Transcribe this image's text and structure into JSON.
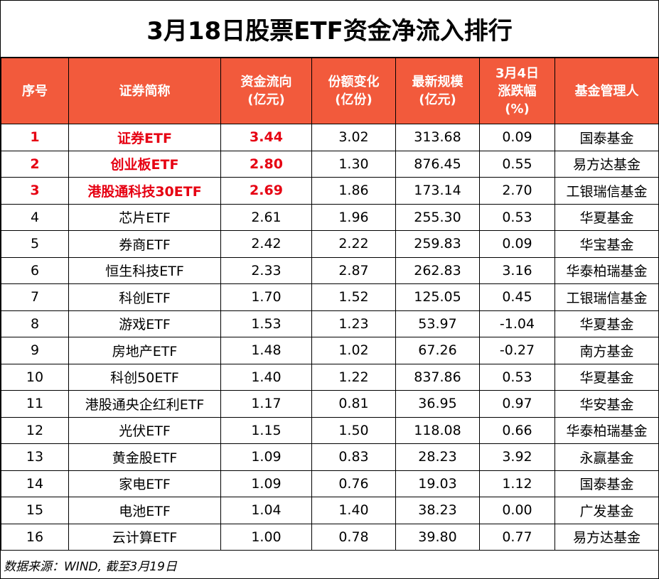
{
  "title": "3月18日股票ETF资金净流入排行",
  "headers": {
    "rank": "序号",
    "name": "证券简称",
    "flow": "资金流向\n(亿元)",
    "share": "份额变化\n(亿份)",
    "scale": "最新规模\n(亿元)",
    "change": "3月4日\n涨跌幅\n(%)",
    "manager": "基金管理人"
  },
  "rows": [
    {
      "rank": "1",
      "name": "证券ETF",
      "flow": "3.44",
      "share": "3.02",
      "scale": "313.68",
      "change": "0.09",
      "manager": "国泰基金",
      "highlight": true
    },
    {
      "rank": "2",
      "name": "创业板ETF",
      "flow": "2.80",
      "share": "1.30",
      "scale": "876.45",
      "change": "0.55",
      "manager": "易方达基金",
      "highlight": true
    },
    {
      "rank": "3",
      "name": "港股通科技30ETF",
      "flow": "2.69",
      "share": "1.86",
      "scale": "173.14",
      "change": "2.70",
      "manager": "工银瑞信基金",
      "highlight": true
    },
    {
      "rank": "4",
      "name": "芯片ETF",
      "flow": "2.61",
      "share": "1.96",
      "scale": "255.30",
      "change": "0.53",
      "manager": "华夏基金"
    },
    {
      "rank": "5",
      "name": "券商ETF",
      "flow": "2.42",
      "share": "2.22",
      "scale": "259.83",
      "change": "0.09",
      "manager": "华宝基金"
    },
    {
      "rank": "6",
      "name": "恒生科技ETF",
      "flow": "2.33",
      "share": "2.87",
      "scale": "262.83",
      "change": "3.16",
      "manager": "华泰柏瑞基金"
    },
    {
      "rank": "7",
      "name": "科创ETF",
      "flow": "1.70",
      "share": "1.52",
      "scale": "125.05",
      "change": "0.45",
      "manager": "工银瑞信基金"
    },
    {
      "rank": "8",
      "name": "游戏ETF",
      "flow": "1.53",
      "share": "1.23",
      "scale": "53.97",
      "change": "-1.04",
      "manager": "华夏基金"
    },
    {
      "rank": "9",
      "name": "房地产ETF",
      "flow": "1.48",
      "share": "1.02",
      "scale": "67.26",
      "change": "-0.27",
      "manager": "南方基金"
    },
    {
      "rank": "10",
      "name": "科创50ETF",
      "flow": "1.40",
      "share": "1.22",
      "scale": "837.86",
      "change": "0.53",
      "manager": "华夏基金"
    },
    {
      "rank": "11",
      "name": "港股通央企红利ETF",
      "flow": "1.17",
      "share": "0.81",
      "scale": "36.95",
      "change": "0.97",
      "manager": "华安基金"
    },
    {
      "rank": "12",
      "name": "光伏ETF",
      "flow": "1.15",
      "share": "1.50",
      "scale": "118.08",
      "change": "0.66",
      "manager": "华泰柏瑞基金"
    },
    {
      "rank": "13",
      "name": "黄金股ETF",
      "flow": "1.09",
      "share": "0.83",
      "scale": "28.23",
      "change": "3.92",
      "manager": "永赢基金"
    },
    {
      "rank": "14",
      "name": "家电ETF",
      "flow": "1.09",
      "share": "0.76",
      "scale": "19.03",
      "change": "1.12",
      "manager": "国泰基金"
    },
    {
      "rank": "15",
      "name": "电池ETF",
      "flow": "1.04",
      "share": "1.40",
      "scale": "38.23",
      "change": "0.00",
      "manager": "广发基金"
    },
    {
      "rank": "16",
      "name": "云计算ETF",
      "flow": "1.00",
      "share": "0.78",
      "scale": "39.80",
      "change": "0.77",
      "manager": "易方达基金"
    }
  ],
  "footer": "数据来源：WIND, 截至3月19日",
  "colors": {
    "header_bg": "#f25a3c",
    "highlight_text": "#e60012"
  }
}
